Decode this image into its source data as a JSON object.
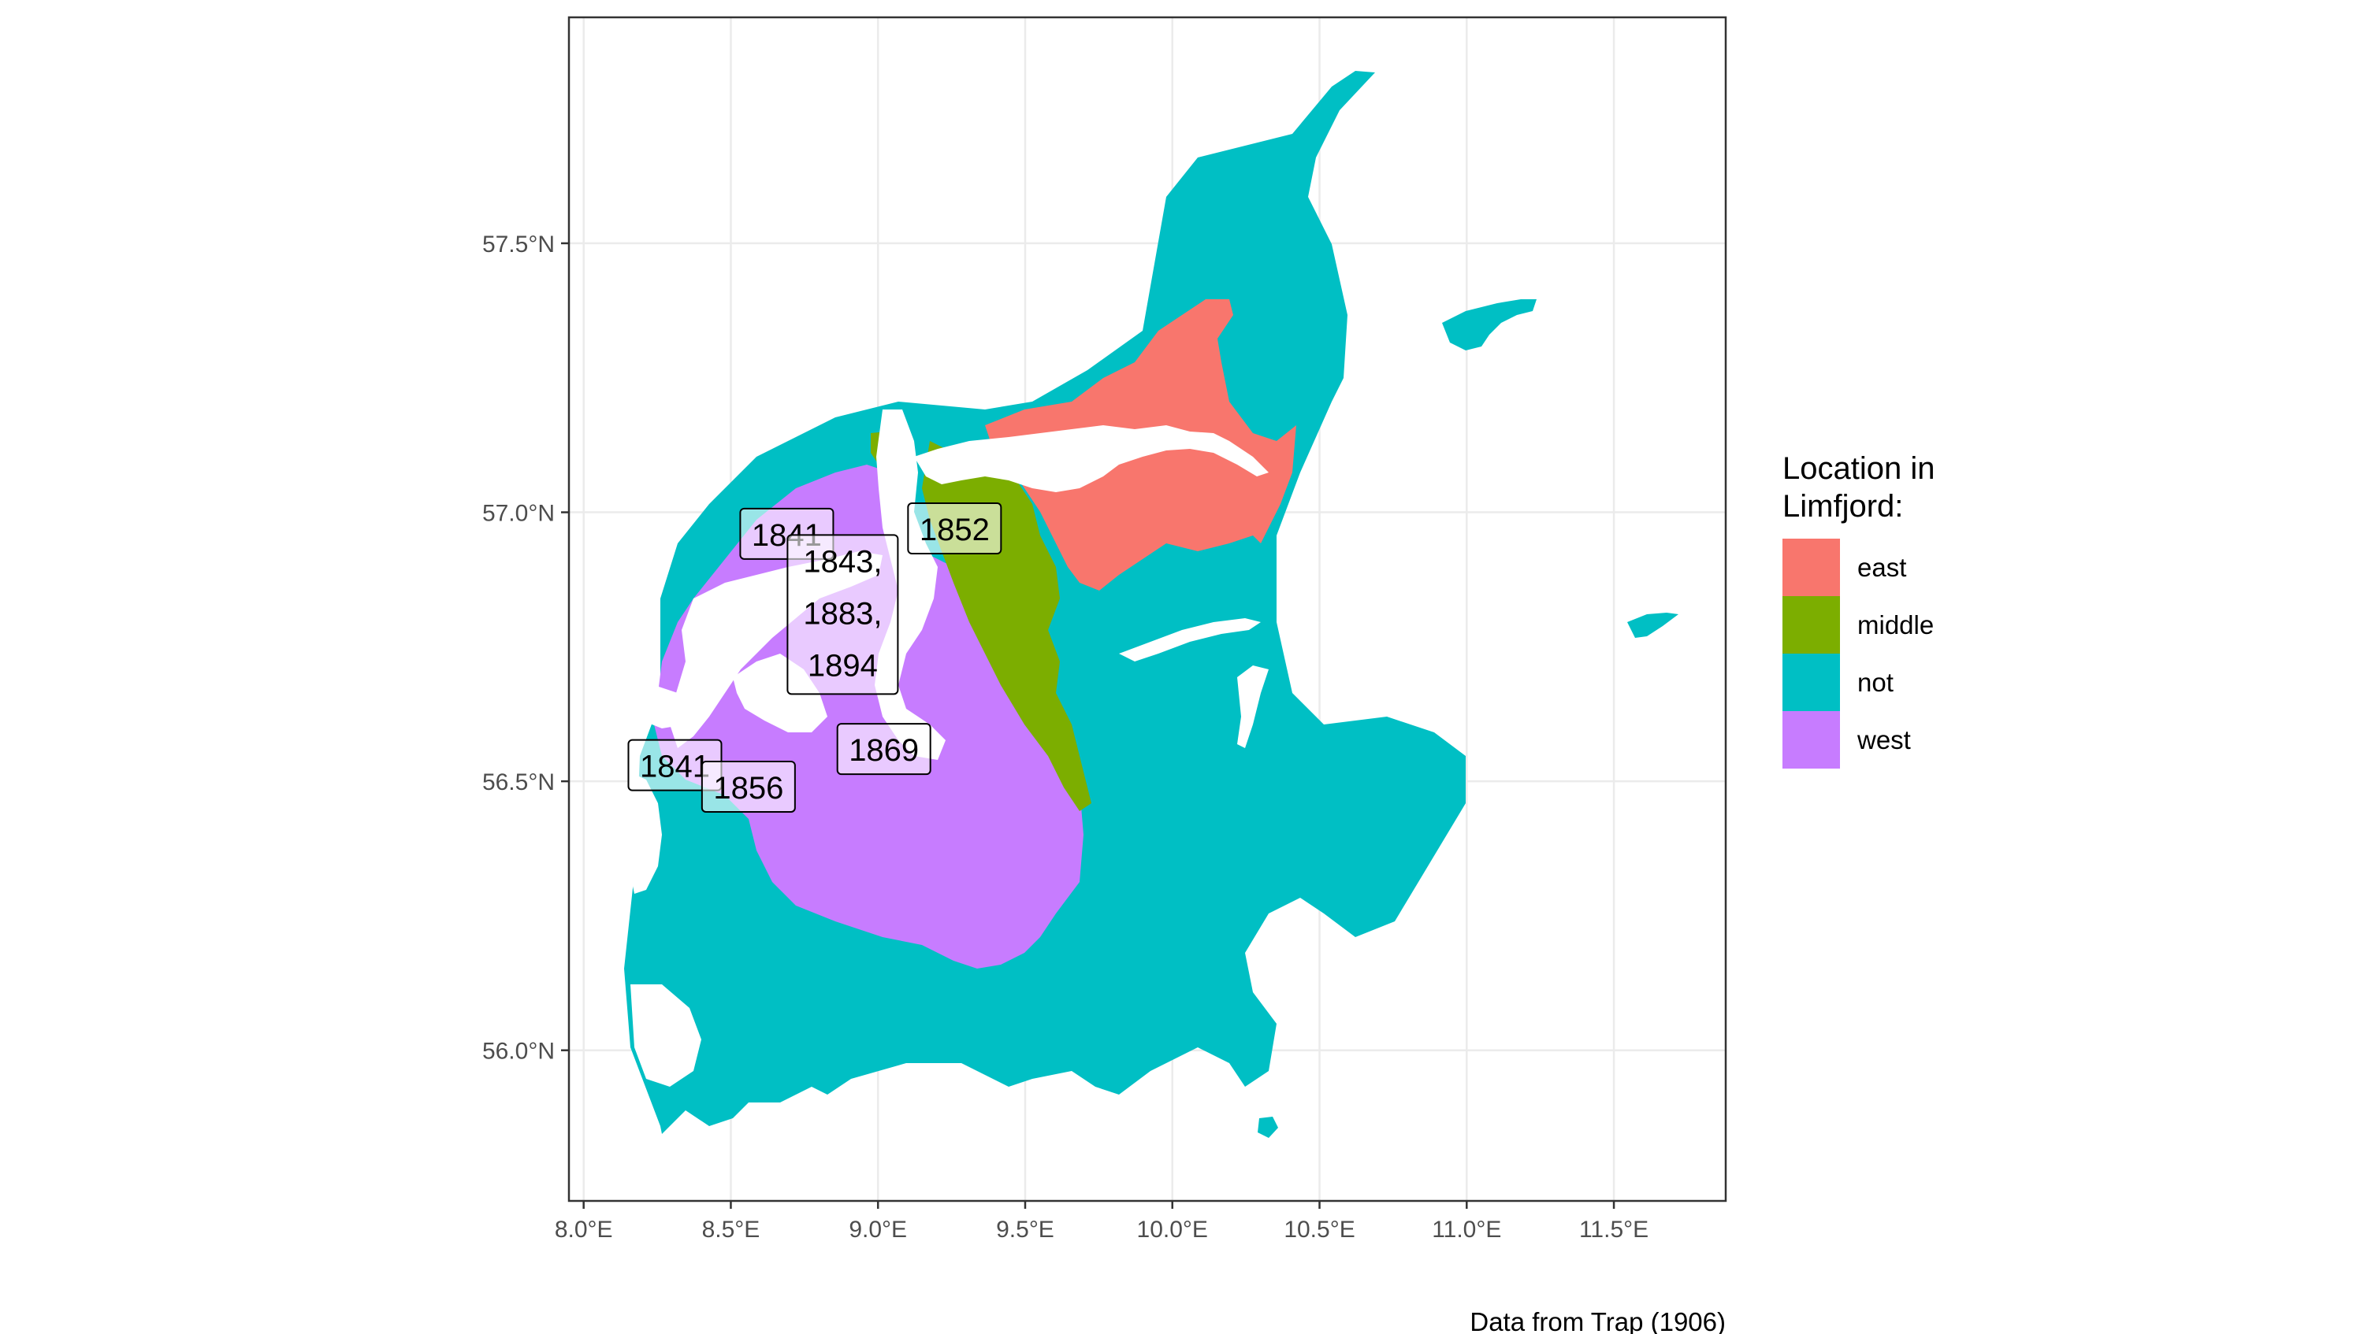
{
  "map": {
    "x_ticks": [
      "8.0°E",
      "8.5°E",
      "9.0°E",
      "9.5°E",
      "10.0°E",
      "10.5°E",
      "11.0°E",
      "11.5°E"
    ],
    "y_ticks": [
      "57.5°N",
      "57.0°N",
      "56.5°N",
      "56.0°N"
    ],
    "x_range": [
      7.95,
      11.88
    ],
    "y_range": [
      55.72,
      57.92
    ],
    "grid": true
  },
  "legend": {
    "title_line1": "Location in",
    "title_line2": "Limfjord:",
    "items": [
      {
        "label": "east",
        "color": "#F8766D"
      },
      {
        "label": "middle",
        "color": "#7CAE00"
      },
      {
        "label": "not",
        "color": "#00BFC4"
      },
      {
        "label": "west",
        "color": "#C77CFF"
      }
    ]
  },
  "labels": [
    {
      "lines": [
        "1841"
      ],
      "lon": 8.69,
      "lat": 56.96
    },
    {
      "lines": [
        "1852"
      ],
      "lon": 9.26,
      "lat": 56.97
    },
    {
      "lines": [
        "1843,",
        "1883,",
        "1894"
      ],
      "lon": 8.88,
      "lat": 56.81
    },
    {
      "lines": [
        "1841"
      ],
      "lon": 8.31,
      "lat": 56.53
    },
    {
      "lines": [
        "1856"
      ],
      "lon": 8.56,
      "lat": 56.49
    },
    {
      "lines": [
        "1869"
      ],
      "lon": 9.02,
      "lat": 56.56
    }
  ],
  "caption": "Data from Trap (1906)"
}
